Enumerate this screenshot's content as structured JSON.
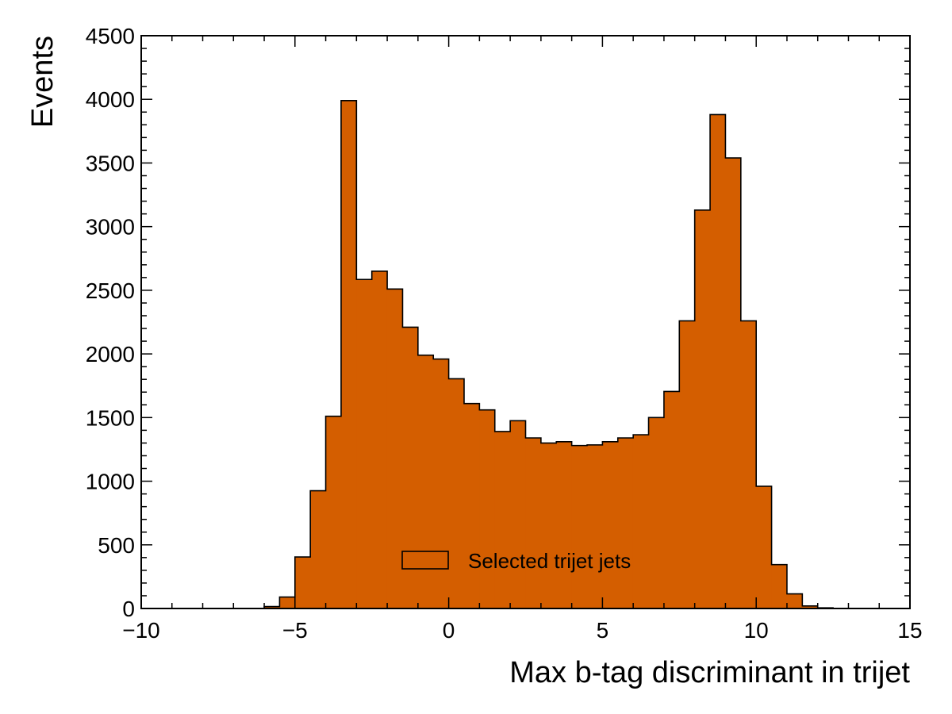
{
  "chart_data": {
    "type": "bar",
    "histogram": true,
    "bin_edges": [
      -10,
      -9.5,
      -9,
      -8.5,
      -8,
      -7.5,
      -7,
      -6.5,
      -6,
      -5.5,
      -5,
      -4.5,
      -4,
      -3.5,
      -3,
      -2.5,
      -2,
      -1.5,
      -1,
      -0.5,
      0,
      0.5,
      1,
      1.5,
      2,
      2.5,
      3,
      3.5,
      4,
      4.5,
      5,
      5.5,
      6,
      6.5,
      7,
      7.5,
      8,
      8.5,
      9,
      9.5,
      10,
      10.5,
      11,
      11.5,
      12,
      12.5,
      13,
      13.5,
      14,
      14.5,
      15
    ],
    "values": [
      0,
      0,
      0,
      0,
      0,
      0,
      0,
      0,
      15,
      90,
      405,
      925,
      1510,
      3990,
      2585,
      2650,
      2510,
      2210,
      1990,
      1960,
      1805,
      1610,
      1560,
      1390,
      1475,
      1340,
      1300,
      1310,
      1280,
      1285,
      1310,
      1340,
      1365,
      1500,
      1705,
      2260,
      3130,
      3880,
      3540,
      2260,
      960,
      345,
      115,
      20,
      5,
      0,
      0,
      0,
      0,
      0
    ],
    "series": [
      {
        "name": "Selected trijet jets",
        "color": "#d45e00"
      }
    ],
    "xlabel": "Max b-tag discriminant in trijet",
    "ylabel": "Events",
    "xlim": [
      -10,
      15
    ],
    "ylim": [
      0,
      4500
    ],
    "x_ticks": [
      -10,
      -5,
      0,
      5,
      10,
      15
    ],
    "x_tick_labels": [
      "−10",
      "−5",
      "0",
      "5",
      "10",
      "15"
    ],
    "y_ticks": [
      0,
      500,
      1000,
      1500,
      2000,
      2500,
      3000,
      3500,
      4000,
      4500
    ],
    "y_tick_labels": [
      "0",
      "500",
      "1000",
      "1500",
      "2000",
      "2500",
      "3000",
      "3500",
      "4000",
      "4500"
    ],
    "x_minor_step": 1,
    "y_minor_step": 100,
    "grid": false,
    "legend_position": "bottom-center",
    "fill_color": "#d45e00",
    "edge_color": "#000000"
  }
}
